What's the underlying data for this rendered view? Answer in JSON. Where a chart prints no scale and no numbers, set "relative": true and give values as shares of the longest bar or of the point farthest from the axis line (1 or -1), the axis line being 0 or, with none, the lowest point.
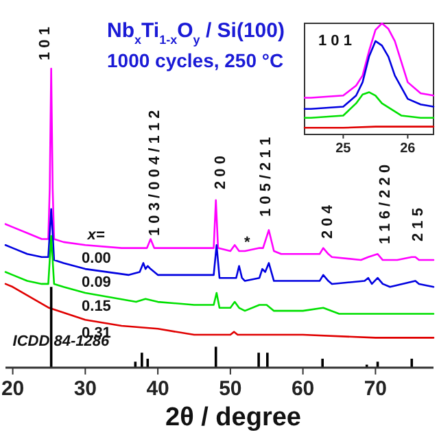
{
  "chart_data": [
    {
      "type": "line",
      "title": "Nb$_{x}$Ti$_{1-x}$O$_{y}$ / Si(100)",
      "subtitle": "1000 cycles, 250 °C",
      "xlabel": "2θ / degree",
      "legend_title": "x=",
      "relative": true,
      "xlim": [
        19,
        78
      ],
      "xticks": [
        20,
        30,
        40,
        50,
        60,
        70
      ],
      "annotations": [
        "1 0 1",
        "1 0 3 / 0 0 4 / 1 1 2",
        "2 0 0",
        "*",
        "1 0 5 / 2 1 1",
        "2 0 4",
        "1 1 6 / 2 2 0",
        "2 1 5"
      ],
      "series": [
        {
          "name": "0.00",
          "color": "#ff00ff",
          "x": [
            19,
            20,
            22,
            24,
            24.9,
            25.1,
            25.3,
            25.5,
            25.7,
            27,
            30,
            35,
            38.5,
            39,
            39.5,
            45,
            47.7,
            48,
            48.3,
            50,
            50.6,
            51.2,
            52,
            54,
            54.5,
            55.3,
            56,
            57,
            60,
            62.3,
            62.8,
            63.5,
            64,
            68,
            69,
            70.3,
            71,
            73,
            75,
            75.5,
            76,
            78
          ],
          "values": [
            0.48,
            0.47,
            0.45,
            0.43,
            0.43,
            0.6,
            1,
            0.6,
            0.43,
            0.42,
            0.41,
            0.4,
            0.4,
            0.43,
            0.4,
            0.4,
            0.4,
            0.56,
            0.4,
            0.39,
            0.41,
            0.39,
            0.39,
            0.4,
            0.4,
            0.46,
            0.39,
            0.38,
            0.38,
            0.38,
            0.4,
            0.38,
            0.37,
            0.36,
            0.37,
            0.38,
            0.36,
            0.36,
            0.37,
            0.37,
            0.36,
            0.36
          ]
        },
        {
          "name": "0.09",
          "color": "#0000e0",
          "x": [
            19,
            20,
            22,
            24,
            24.9,
            25.1,
            25.3,
            25.5,
            25.7,
            27,
            30,
            36,
            37.5,
            38,
            38.3,
            38.6,
            39,
            40,
            45,
            47.7,
            48.1,
            48.5,
            50,
            50.8,
            51.2,
            51.6,
            52,
            54,
            54.4,
            54.8,
            55.3,
            56,
            60,
            62.3,
            62.8,
            63.5,
            64,
            68.5,
            69,
            69.5,
            70.3,
            71,
            72,
            75.5,
            76,
            78
          ],
          "values": [
            0.41,
            0.4,
            0.38,
            0.37,
            0.37,
            0.45,
            0.53,
            0.45,
            0.36,
            0.35,
            0.33,
            0.31,
            0.32,
            0.35,
            0.33,
            0.34,
            0.33,
            0.31,
            0.31,
            0.31,
            0.41,
            0.3,
            0.3,
            0.3,
            0.34,
            0.3,
            0.29,
            0.3,
            0.33,
            0.32,
            0.35,
            0.29,
            0.29,
            0.29,
            0.31,
            0.29,
            0.28,
            0.29,
            0.3,
            0.28,
            0.3,
            0.28,
            0.27,
            0.29,
            0.28,
            0.27
          ]
        },
        {
          "name": "0.15",
          "color": "#00e000",
          "x": [
            19,
            20,
            22,
            24,
            24.9,
            25.1,
            25.3,
            25.5,
            25.7,
            27,
            30,
            37,
            38.3,
            40,
            45,
            47.7,
            48.1,
            48.5,
            50,
            50.6,
            51.2,
            52,
            54,
            54.5,
            55,
            56,
            60,
            62.8,
            65,
            70,
            78
          ],
          "values": [
            0.32,
            0.31,
            0.29,
            0.28,
            0.28,
            0.36,
            0.44,
            0.36,
            0.28,
            0.27,
            0.25,
            0.22,
            0.23,
            0.22,
            0.21,
            0.21,
            0.25,
            0.2,
            0.2,
            0.22,
            0.2,
            0.19,
            0.21,
            0.21,
            0.21,
            0.19,
            0.19,
            0.2,
            0.18,
            0.18,
            0.18
          ]
        },
        {
          "name": "0.31",
          "color": "#e00000",
          "x": [
            19,
            20,
            25,
            30,
            35,
            40,
            45,
            50,
            50.5,
            51,
            52,
            60,
            70,
            78
          ],
          "values": [
            0.28,
            0.27,
            0.2,
            0.16,
            0.14,
            0.13,
            0.11,
            0.11,
            0.12,
            0.11,
            0.11,
            0.11,
            0.1,
            0.1
          ]
        },
        {
          "name": "ICDD 84-1286",
          "type": "bar",
          "color": "#000000",
          "x": [
            25.3,
            36.9,
            37.8,
            38.6,
            48,
            53.9,
            55.1,
            62.7,
            68.8,
            70.3,
            75
          ],
          "values": [
            0.27,
            0.02,
            0.05,
            0.03,
            0.07,
            0.05,
            0.05,
            0.03,
            0.01,
            0.02,
            0.03
          ]
        }
      ]
    },
    {
      "type": "line",
      "relative": true,
      "xlim": [
        24.4,
        26.4
      ],
      "xticks": [
        25,
        26
      ],
      "annotations": [
        "1 0 1"
      ],
      "series": [
        {
          "color": "#ff00ff",
          "x": [
            24.4,
            24.5,
            25,
            25.2,
            25.3,
            25.4,
            25.5,
            25.6,
            25.7,
            25.8,
            26,
            26.2,
            26.4
          ],
          "values": [
            0.33,
            0.33,
            0.35,
            0.44,
            0.53,
            0.75,
            0.94,
            1,
            0.95,
            0.84,
            0.47,
            0.37,
            0.35
          ]
        },
        {
          "color": "#0000e0",
          "x": [
            24.4,
            24.5,
            25,
            25.2,
            25.3,
            25.4,
            25.5,
            25.6,
            25.7,
            25.8,
            26,
            26.2,
            26.4
          ],
          "values": [
            0.23,
            0.23,
            0.25,
            0.35,
            0.47,
            0.7,
            0.84,
            0.8,
            0.7,
            0.53,
            0.32,
            0.27,
            0.25
          ]
        },
        {
          "color": "#00e000",
          "x": [
            24.4,
            24.5,
            25,
            25.2,
            25.3,
            25.4,
            25.5,
            25.6,
            25.9,
            26.2,
            26.4
          ],
          "values": [
            0.15,
            0.15,
            0.17,
            0.28,
            0.36,
            0.38,
            0.35,
            0.28,
            0.17,
            0.15,
            0.15
          ]
        },
        {
          "color": "#e00000",
          "x": [
            24.4,
            24.5,
            25,
            25.5,
            26,
            26.4
          ],
          "values": [
            0.06,
            0.06,
            0.06,
            0.07,
            0.07,
            0.07
          ]
        }
      ]
    }
  ]
}
